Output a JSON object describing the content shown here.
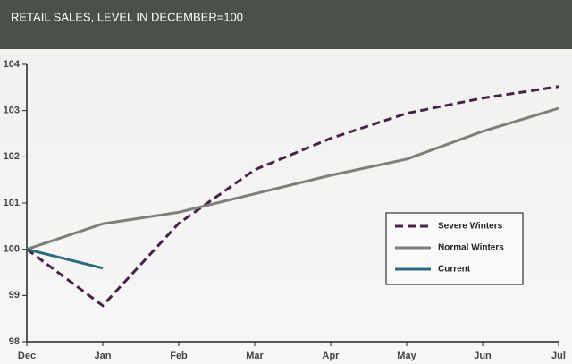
{
  "chart_data": {
    "type": "line",
    "title": "RETAIL SALES, LEVEL IN DECEMBER=100",
    "categories": [
      "Dec",
      "Jan",
      "Feb",
      "Mar",
      "Apr",
      "May",
      "Jun",
      "Jul"
    ],
    "series": [
      {
        "name": "Severe Winters",
        "color": "#4b1f4a",
        "dashed": true,
        "values": [
          100,
          98.78,
          100.56,
          101.72,
          102.4,
          102.94,
          103.27,
          103.52
        ]
      },
      {
        "name": "Normal Winters",
        "color": "#7b807b",
        "dashed": false,
        "values": [
          100,
          100.55,
          100.8,
          101.2,
          101.6,
          101.95,
          102.55,
          103.05
        ]
      },
      {
        "name": "Current",
        "color": "#2a6a80",
        "dashed": false,
        "values": [
          100,
          99.59,
          null,
          null,
          null,
          null,
          null,
          null
        ]
      }
    ],
    "ylim": [
      98,
      104
    ],
    "yticks": [
      98,
      99,
      100,
      101,
      102,
      103,
      104
    ],
    "grid": false,
    "legend": "right"
  }
}
